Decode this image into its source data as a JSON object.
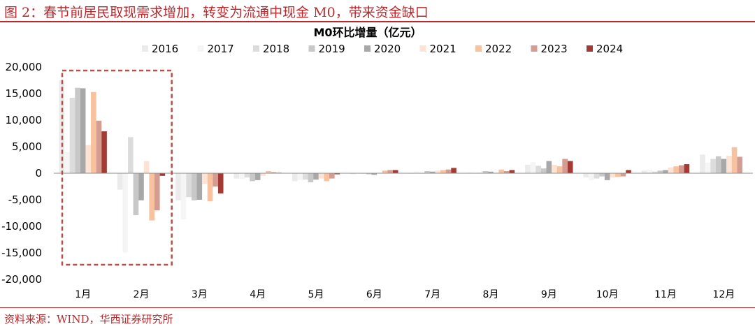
{
  "header": {
    "title": "图 2：春节前居民取现需求增加，转变为流通中现金 M0，带来资金缺口"
  },
  "footer": {
    "source": "资料来源：WIND，华西证券研究所"
  },
  "colors": {
    "accent": "#b8292c",
    "highlight_box": "#b5504a",
    "series": [
      "#ebebeb",
      "#f5f5f5",
      "#dcdcdc",
      "#c8c8c8",
      "#a8a8a8",
      "#fde3d4",
      "#f9c29e",
      "#d59c92",
      "#a33a34"
    ]
  },
  "chart_data": {
    "type": "bar",
    "title": "M0环比增量（亿元）",
    "categories": [
      "1月",
      "2月",
      "3月",
      "4月",
      "5月",
      "6月",
      "7月",
      "8月",
      "9月",
      "10月",
      "11月",
      "12月"
    ],
    "ylim": [
      -20000,
      20000
    ],
    "yticks": [
      20000,
      15000,
      10000,
      5000,
      0,
      -5000,
      -10000,
      -15000,
      -20000
    ],
    "ytick_labels": [
      "20,000",
      "15,000",
      "10,000",
      "5,000",
      "0",
      "-5,000",
      "-10,000",
      "-15,000",
      "-20,000"
    ],
    "legend_position": "top",
    "highlighted_categories": [
      "1月",
      "2月"
    ],
    "series": [
      {
        "name": "2016",
        "values": [
          17500,
          -3100,
          -5100,
          -1000,
          -1500,
          -200,
          -100,
          100,
          1600,
          -800,
          500,
          3500
        ]
      },
      {
        "name": "2017",
        "values": [
          4000,
          -14900,
          -8700,
          -1100,
          -1300,
          -100,
          300,
          -100,
          2100,
          -1300,
          700,
          2000
        ]
      },
      {
        "name": "2018",
        "values": [
          14200,
          6800,
          -4500,
          -800,
          -1200,
          -100,
          -100,
          100,
          1400,
          -1000,
          300,
          2700
        ]
      },
      {
        "name": "2019",
        "values": [
          16100,
          -7900,
          -5100,
          -1500,
          -1700,
          -200,
          400,
          400,
          900,
          -600,
          500,
          3200
        ]
      },
      {
        "name": "2020",
        "values": [
          16000,
          -5100,
          -5000,
          -1300,
          -1200,
          -300,
          300,
          300,
          2300,
          -1300,
          600,
          2700
        ]
      },
      {
        "name": "2021",
        "values": [
          5300,
          2300,
          -2000,
          -500,
          -1000,
          100,
          500,
          100,
          1600,
          -800,
          1100,
          3300
        ]
      },
      {
        "name": "2022",
        "values": [
          15300,
          -8900,
          -5300,
          400,
          -1500,
          500,
          600,
          700,
          1300,
          -700,
          1300,
          4900
        ]
      },
      {
        "name": "2023",
        "values": [
          9900,
          -7000,
          -2500,
          200,
          -1000,
          600,
          700,
          400,
          2700,
          -600,
          1500,
          3100
        ]
      },
      {
        "name": "2024",
        "values": [
          7900,
          -500,
          -3800,
          100,
          -200,
          600,
          1000,
          600,
          2300,
          600,
          1700,
          0
        ]
      }
    ]
  }
}
